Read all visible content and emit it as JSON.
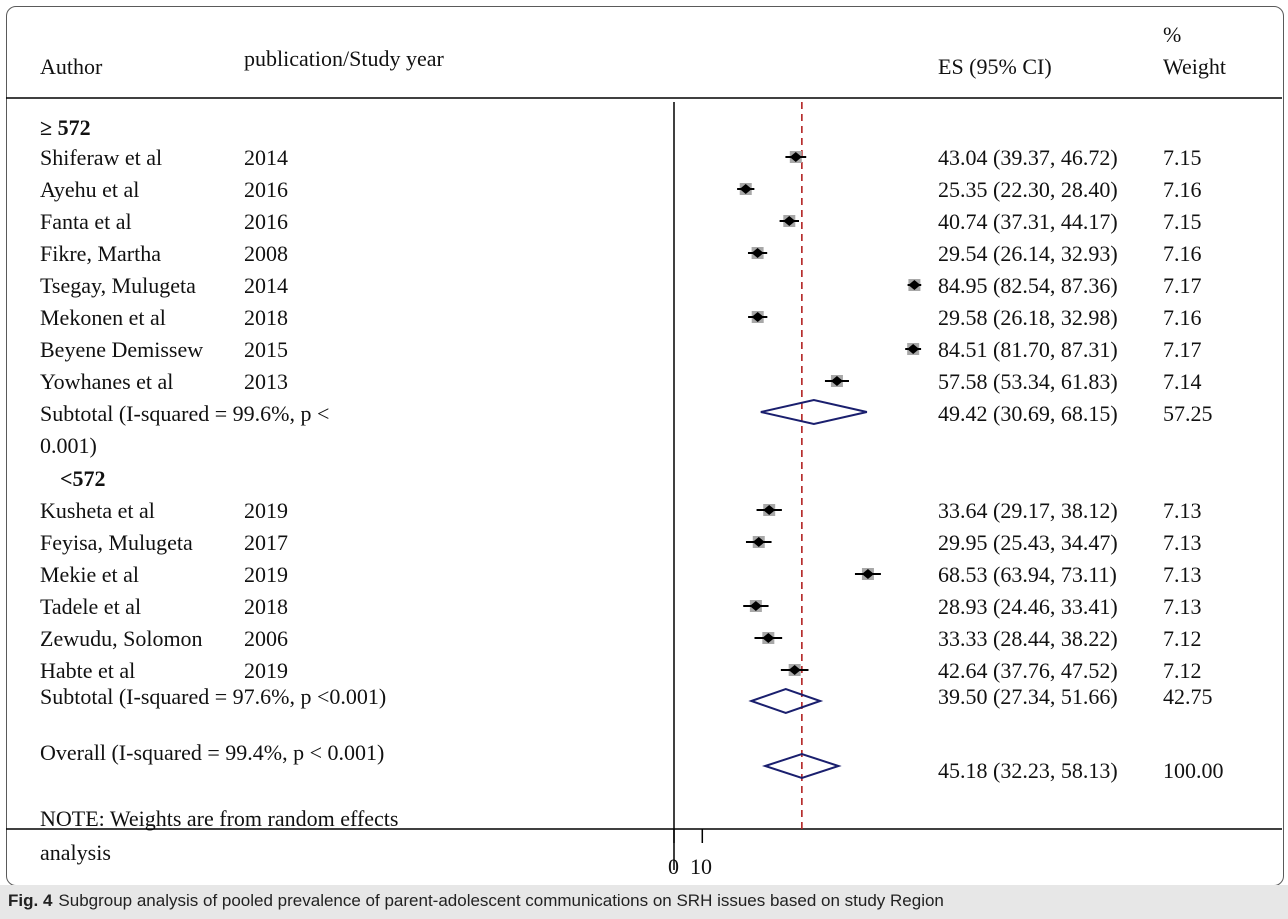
{
  "header": {
    "author": "Author",
    "year": "publication/Study year",
    "es": "ES (95% CI)",
    "weight_pct": "%",
    "weight": "Weight"
  },
  "groups": [
    {
      "label": "≥ 572",
      "studies": [
        {
          "author": "Shiferaw et al",
          "year": "2014",
          "es": 43.04,
          "lo": 39.37,
          "hi": 46.72,
          "ci_text": "43.04 (39.37, 46.72)",
          "weight": "7.15"
        },
        {
          "author": "Ayehu et al",
          "year": "2016",
          "es": 25.35,
          "lo": 22.3,
          "hi": 28.4,
          "ci_text": "25.35 (22.30, 28.40)",
          "weight": "7.16"
        },
        {
          "author": "Fanta et al",
          "year": "2016",
          "es": 40.74,
          "lo": 37.31,
          "hi": 44.17,
          "ci_text": "40.74 (37.31, 44.17)",
          "weight": "7.15"
        },
        {
          "author": "Fikre, Martha",
          "year": "2008",
          "es": 29.54,
          "lo": 26.14,
          "hi": 32.93,
          "ci_text": "29.54 (26.14, 32.93)",
          "weight": "7.16"
        },
        {
          "author": "Tsegay, Mulugeta",
          "year": "2014",
          "es": 84.95,
          "lo": 82.54,
          "hi": 87.36,
          "ci_text": "84.95 (82.54, 87.36)",
          "weight": "7.17"
        },
        {
          "author": "Mekonen et al",
          "year": "2018",
          "es": 29.58,
          "lo": 26.18,
          "hi": 32.98,
          "ci_text": "29.58 (26.18, 32.98)",
          "weight": "7.16"
        },
        {
          "author": "Beyene Demissew",
          "year": "2015",
          "es": 84.51,
          "lo": 81.7,
          "hi": 87.31,
          "ci_text": "84.51 (81.70, 87.31)",
          "weight": "7.17"
        },
        {
          "author": "Yowhanes et al",
          "year": "2013",
          "es": 57.58,
          "lo": 53.34,
          "hi": 61.83,
          "ci_text": "57.58 (53.34, 61.83)",
          "weight": "7.14"
        }
      ],
      "subtotal": {
        "label_line1": "Subtotal  (I-squared = 99.6%, p <",
        "label_line2": "0.001)",
        "es": 49.42,
        "lo": 30.69,
        "hi": 68.15,
        "ci_text": "49.42 (30.69, 68.15)",
        "weight": "57.25"
      }
    },
    {
      "label": "<572",
      "studies": [
        {
          "author": "Kusheta et al",
          "year": "2019",
          "es": 33.64,
          "lo": 29.17,
          "hi": 38.12,
          "ci_text": "33.64 (29.17, 38.12)",
          "weight": "7.13"
        },
        {
          "author": "Feyisa, Mulugeta",
          "year": "2017",
          "es": 29.95,
          "lo": 25.43,
          "hi": 34.47,
          "ci_text": "29.95 (25.43, 34.47)",
          "weight": "7.13"
        },
        {
          "author": "Mekie et al",
          "year": "2019",
          "es": 68.53,
          "lo": 63.94,
          "hi": 73.11,
          "ci_text": "68.53 (63.94, 73.11)",
          "weight": "7.13"
        },
        {
          "author": "Tadele et al",
          "year": "2018",
          "es": 28.93,
          "lo": 24.46,
          "hi": 33.41,
          "ci_text": "28.93 (24.46, 33.41)",
          "weight": "7.13"
        },
        {
          "author": "Zewudu, Solomon",
          "year": "2006",
          "es": 33.33,
          "lo": 28.44,
          "hi": 38.22,
          "ci_text": "33.33 (28.44, 38.22)",
          "weight": "7.12"
        },
        {
          "author": "Habte et al",
          "year": "2019",
          "es": 42.64,
          "lo": 37.76,
          "hi": 47.52,
          "ci_text": "42.64 (37.76, 47.52)",
          "weight": "7.12"
        }
      ],
      "subtotal": {
        "label_line1": "Subtotal  (I-squared = 97.6%, p <0.001)",
        "label_line2": "",
        "es": 39.5,
        "lo": 27.34,
        "hi": 51.66,
        "ci_text": "39.50 (27.34, 51.66)",
        "weight": "42.75"
      }
    }
  ],
  "overall": {
    "label": "Overall  (I-squared = 99.4%, p < 0.001)",
    "es": 45.18,
    "lo": 32.23,
    "hi": 58.13,
    "ci_text": "45.18 (32.23, 58.13)",
    "weight": "100.00"
  },
  "note_line1": "NOTE: Weights are from random effects",
  "note_line2": "analysis",
  "caption": {
    "fig_label": "Fig. 4",
    "text": "Subgroup analysis of pooled prevalence of parent-adolescent communications on SRH issues based on study Region"
  },
  "chart_data": {
    "type": "forest",
    "x_ticks": [
      "0",
      "10"
    ],
    "null_line": 0,
    "pooled_line": 45.18,
    "colors": {
      "marker": "#000000",
      "ci": "#000000",
      "weight_box": "#a8a8a8",
      "diamond": "#1a1f6e",
      "pooled_line": "#b22222"
    }
  }
}
